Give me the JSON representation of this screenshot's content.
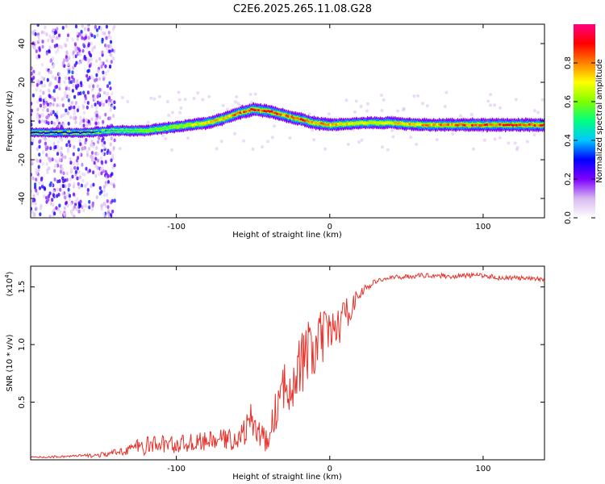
{
  "figure": {
    "title": "C2E6.2025.265.11.08.G28"
  },
  "chart_data": [
    {
      "type": "heatmap",
      "title": "C2E6.2025.265.11.08.G28",
      "xlabel": "Height of straight line (km)",
      "ylabel": "Frequency (Hz)",
      "xlim": [
        -195,
        140
      ],
      "ylim": [
        -50,
        50
      ],
      "x_ticks": [
        -100,
        0,
        100
      ],
      "y_ticks": [
        -40,
        -20,
        0,
        20,
        40
      ],
      "x_tick_labels": [
        "-100",
        "0",
        "100"
      ],
      "y_tick_labels": [
        "-40",
        "-20",
        "0",
        "20",
        "40"
      ],
      "colorbar": {
        "label": "Normalized spectral amplitude",
        "range": [
          0,
          1
        ],
        "ticks": [
          0.0,
          0.2,
          0.4,
          0.6,
          0.8
        ],
        "tick_labels": [
          "0.0",
          "0.2",
          "0.4",
          "0.6",
          "0.8"
        ],
        "colors": [
          "#ffffff",
          "#d8b8f0",
          "#7f00ff",
          "#0000ff",
          "#00c8ff",
          "#00ff80",
          "#80ff00",
          "#ffff00",
          "#ff8000",
          "#ff0000",
          "#ff0080"
        ]
      },
      "ridge": {
        "x": [
          -195,
          -160,
          -140,
          -120,
          -100,
          -80,
          -70,
          -60,
          -50,
          -40,
          -30,
          -20,
          -10,
          0,
          20,
          40,
          60,
          80,
          100,
          120,
          140
        ],
        "frequency": [
          -6,
          -6,
          -5,
          -5,
          -3,
          -1,
          1,
          4,
          6,
          5,
          3,
          1,
          -1,
          -2,
          -1,
          -1,
          -2,
          -2,
          -2,
          -2,
          -2
        ],
        "amplitude": [
          0.3,
          0.3,
          0.45,
          0.55,
          0.6,
          0.75,
          0.8,
          0.85,
          0.9,
          0.9,
          0.85,
          0.9,
          0.85,
          0.8,
          0.7,
          0.75,
          0.8,
          0.85,
          0.9,
          0.9,
          0.9
        ]
      },
      "noise_region_x": [
        -195,
        -140
      ]
    },
    {
      "type": "line",
      "xlabel": "Height of straight line (km)",
      "ylabel": "SNR (10 * v/v)",
      "y_scale_label": "(x10",
      "y_scale_exponent": "4",
      "y_scale_suffix": ")",
      "xlim": [
        -195,
        140
      ],
      "ylim": [
        0,
        1.68
      ],
      "x_ticks": [
        -100,
        0,
        100
      ],
      "y_ticks": [
        0.5,
        1.0,
        1.5
      ],
      "x_tick_labels": [
        "-100",
        "0",
        "100"
      ],
      "y_tick_labels": [
        "0.5",
        "1.0",
        "1.5"
      ],
      "series": [
        {
          "name": "SNR",
          "color": "#e8312a",
          "x": [
            -195,
            -170,
            -150,
            -140,
            -130,
            -120,
            -110,
            -100,
            -90,
            -80,
            -70,
            -60,
            -50,
            -45,
            -40,
            -35,
            -30,
            -25,
            -20,
            -15,
            -10,
            -5,
            0,
            5,
            10,
            15,
            20,
            25,
            30,
            40,
            50,
            60,
            70,
            80,
            90,
            100,
            110,
            120,
            130,
            140
          ],
          "y": [
            0.02,
            0.03,
            0.04,
            0.06,
            0.1,
            0.12,
            0.14,
            0.13,
            0.15,
            0.16,
            0.18,
            0.17,
            0.35,
            0.2,
            0.15,
            0.45,
            0.6,
            0.7,
            0.8,
            0.9,
            0.95,
            1.05,
            1.1,
            1.15,
            1.25,
            1.35,
            1.45,
            1.5,
            1.55,
            1.58,
            1.59,
            1.6,
            1.6,
            1.59,
            1.6,
            1.6,
            1.58,
            1.58,
            1.57,
            1.57
          ],
          "noise_amplitude": [
            0.01,
            0.01,
            0.02,
            0.03,
            0.06,
            0.08,
            0.08,
            0.08,
            0.08,
            0.08,
            0.09,
            0.09,
            0.18,
            0.12,
            0.08,
            0.2,
            0.22,
            0.25,
            0.3,
            0.3,
            0.3,
            0.25,
            0.2,
            0.18,
            0.15,
            0.1,
            0.05,
            0.03,
            0.02,
            0.02,
            0.02,
            0.02,
            0.02,
            0.02,
            0.02,
            0.02,
            0.02,
            0.02,
            0.02,
            0.02
          ]
        }
      ]
    }
  ]
}
